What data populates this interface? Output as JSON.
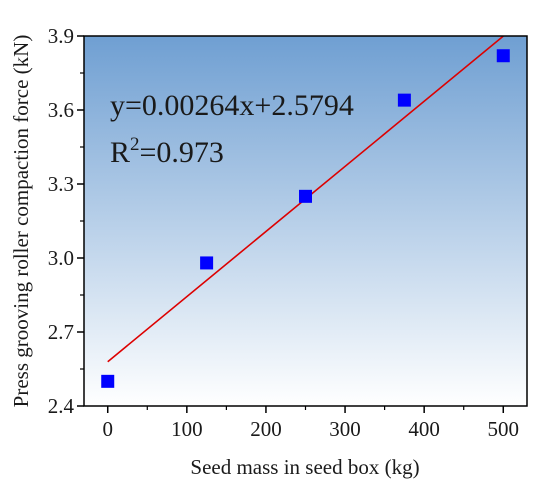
{
  "chart_data": {
    "type": "scatter",
    "xlabel": "Seed mass in seed box (kg)",
    "ylabel": "Press grooving roller compaction force (kN)",
    "xlim": [
      -30,
      530
    ],
    "ylim": [
      2.4,
      3.9
    ],
    "xticks": [
      "0",
      "100",
      "200",
      "300",
      "400",
      "500"
    ],
    "yticks": [
      "2.4",
      "2.7",
      "3.0",
      "3.3",
      "3.6",
      "3.9"
    ],
    "x": [
      0,
      125,
      250,
      375,
      500
    ],
    "y": [
      2.5,
      2.98,
      3.25,
      3.64,
      3.82
    ],
    "fit": {
      "slope": 0.00264,
      "intercept": 2.5794,
      "equation": "y=0.00264x+2.5794",
      "r2_prefix": "R",
      "r2_sup": "2",
      "r2_value": "=0.973"
    },
    "colors": {
      "marker": "#0000ff",
      "fit_line": "#dd0000",
      "background_top": "#6f9fd2",
      "background_bottom": "#ffffff"
    },
    "grid": false
  }
}
